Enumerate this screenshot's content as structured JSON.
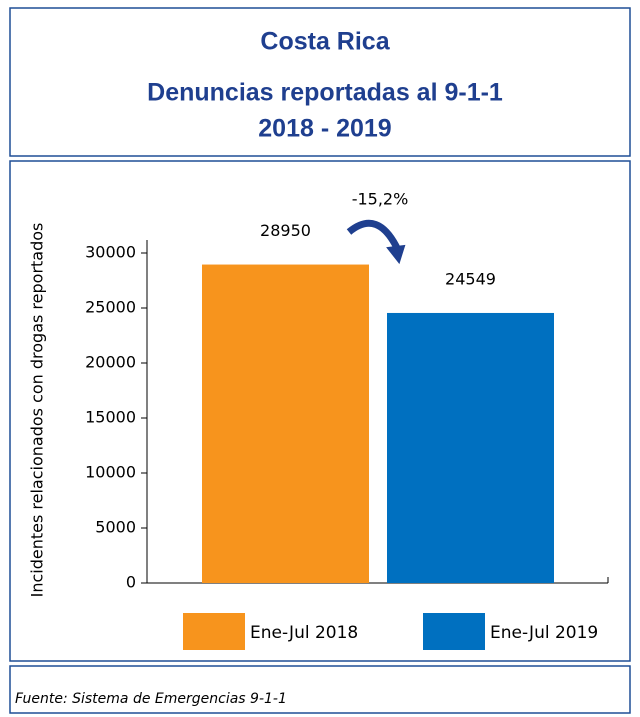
{
  "chart_data": {
    "type": "bar",
    "title": "Costa Rica",
    "subtitle": [
      "Denuncias reportadas al 9-1-1",
      "2018 - 2019"
    ],
    "y_label": "Incidentes relacionados con drogas reportados",
    "annotation": "-15,2%",
    "source": "Fuente: Sistema de Emergencias 9-1-1",
    "series": [
      {
        "name": "Ene-Jul 2018",
        "color": "#f7941d",
        "values": [
          28950
        ]
      },
      {
        "name": "Ene-Jul 2019",
        "color": "#0070c0",
        "values": [
          24549
        ]
      }
    ],
    "ylim": [
      0,
      30000
    ],
    "yticks": [
      0,
      5000,
      10000,
      15000,
      20000,
      25000,
      30000
    ],
    "legend": "bottom"
  }
}
